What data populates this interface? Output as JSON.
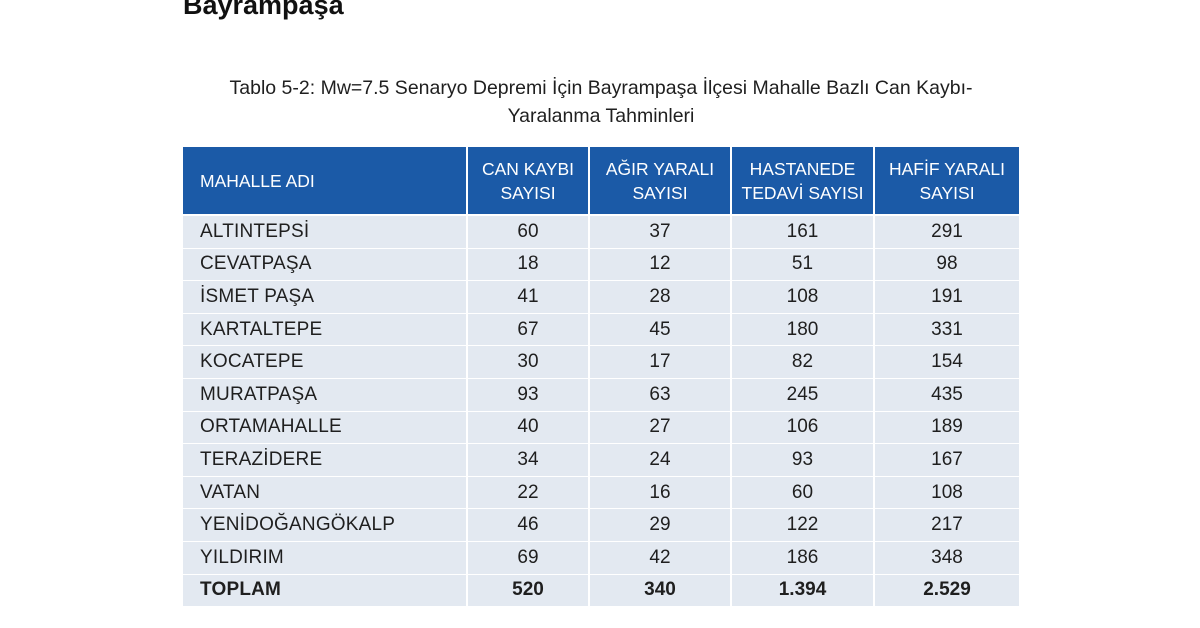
{
  "page": {
    "heading": "Bayrampaşa"
  },
  "table": {
    "caption_line1": "Tablo 5-2: Mw=7.5 Senaryo Depremi İçin Bayrampaşa İlçesi Mahalle Bazlı Can Kaybı-",
    "caption_line2": "Yaralanma Tahminleri",
    "headers": [
      [
        "MAHALLE ADI"
      ],
      [
        "CAN KAYBI",
        "SAYISI"
      ],
      [
        "AĞIR YARALI",
        "SAYISI"
      ],
      [
        "HASTANEDE",
        "TEDAVİ SAYISI"
      ],
      [
        "HAFİF YARALI",
        "SAYISI"
      ]
    ],
    "rows": [
      [
        "ALTINTEPSİ",
        "60",
        "37",
        "161",
        "291"
      ],
      [
        "CEVATPAŞA",
        "18",
        "12",
        "51",
        "98"
      ],
      [
        "İSMET PAŞA",
        "41",
        "28",
        "108",
        "191"
      ],
      [
        "KARTALTEPE",
        "67",
        "45",
        "180",
        "331"
      ],
      [
        "KOCATEPE",
        "30",
        "17",
        "82",
        "154"
      ],
      [
        "MURATPAŞA",
        "93",
        "63",
        "245",
        "435"
      ],
      [
        "ORTAMAHALLE",
        "40",
        "27",
        "106",
        "189"
      ],
      [
        "TERAZİDERE",
        "34",
        "24",
        "93",
        "167"
      ],
      [
        "VATAN",
        "22",
        "16",
        "60",
        "108"
      ],
      [
        "YENİDOĞANGÖKALP",
        "46",
        "29",
        "122",
        "217"
      ],
      [
        "YILDIRIM",
        "69",
        "42",
        "186",
        "348"
      ]
    ],
    "total": [
      "TOPLAM",
      "520",
      "340",
      "1.394",
      "2.529"
    ]
  },
  "colors": {
    "header_bg": "#1b5aa7",
    "body_bg": "#e3e9f1"
  }
}
